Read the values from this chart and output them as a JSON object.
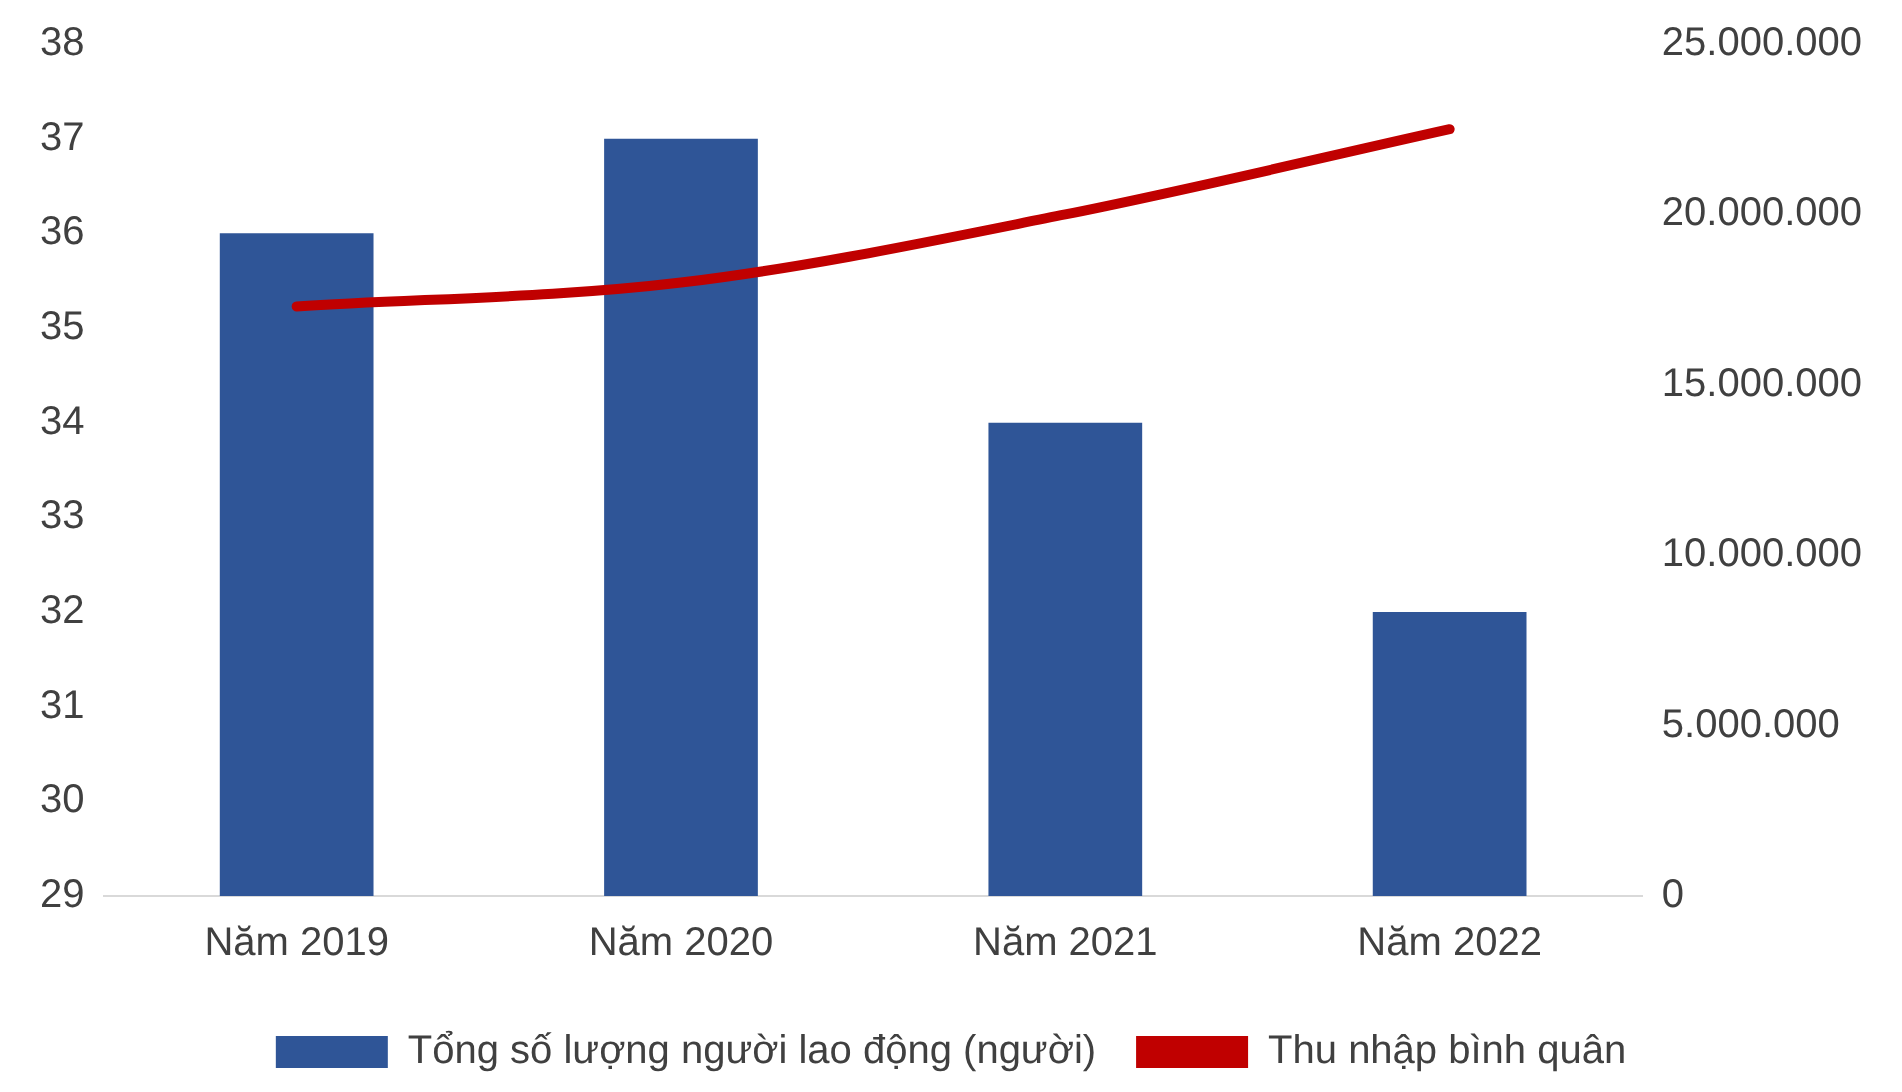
{
  "chart_data": {
    "type": "bar",
    "categories": [
      "Năm 2019",
      "Năm 2020",
      "Năm 2021",
      "Năm 2022"
    ],
    "series": [
      {
        "name": "Tổng số lượng người lao động (người)",
        "color": "#2f5597",
        "values": [
          36,
          37,
          34,
          32
        ]
      },
      {
        "name": "Thu nhập bình quân",
        "type": "line",
        "axis": "y2",
        "color": "#c00000",
        "values": [
          17300000,
          18000000,
          20000000,
          22500000
        ]
      }
    ],
    "ylim": [
      29,
      38
    ],
    "yticks": [
      29,
      30,
      31,
      32,
      33,
      34,
      35,
      36,
      37,
      38
    ],
    "y2lim": [
      0,
      25000000
    ],
    "y2ticks": [
      {
        "value": 0,
        "label": "0"
      },
      {
        "value": 5000000,
        "label": "5.000.000"
      },
      {
        "value": 10000000,
        "label": "10.000.000"
      },
      {
        "value": 15000000,
        "label": "15.000.000"
      },
      {
        "value": 20000000,
        "label": "20.000.000"
      },
      {
        "value": 25000000,
        "label": "25.000.000"
      }
    ],
    "grid": false,
    "legend": "bottom",
    "marker": "none"
  }
}
